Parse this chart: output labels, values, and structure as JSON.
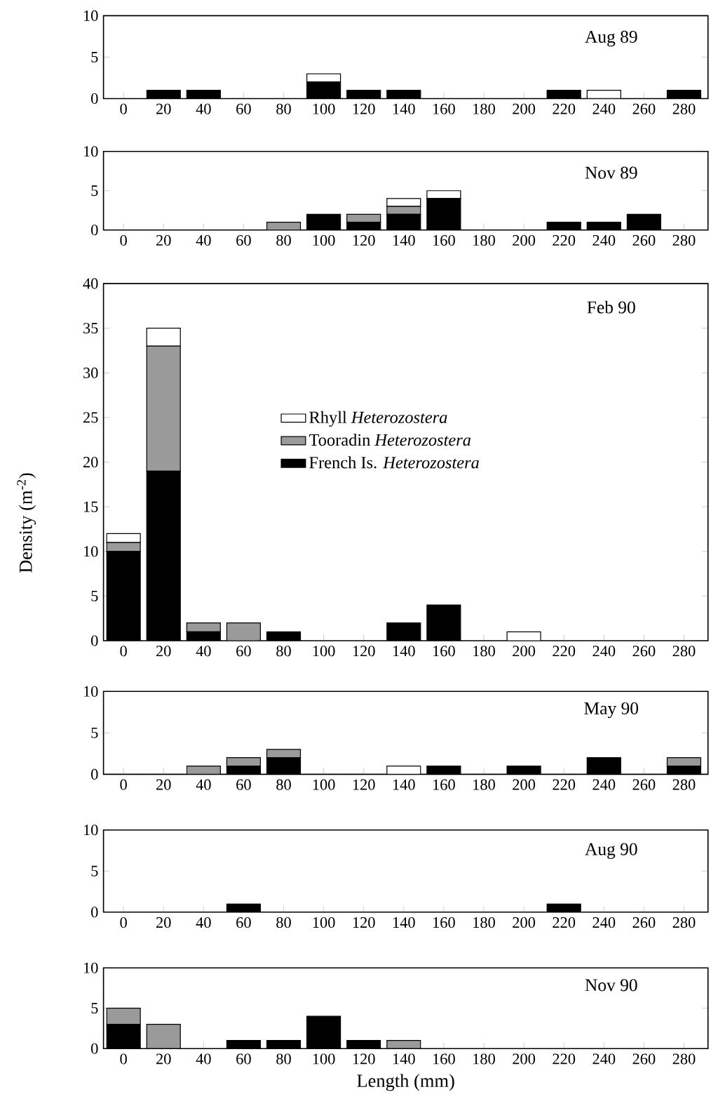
{
  "chart_data": [
    {
      "type": "bar",
      "stacked": true,
      "title": "Aug 89",
      "categories": [
        "0",
        "20",
        "40",
        "60",
        "80",
        "100",
        "120",
        "140",
        "160",
        "180",
        "200",
        "220",
        "240",
        "260",
        "280"
      ],
      "ylim": [
        0,
        10
      ],
      "yticks": [
        0,
        5,
        10
      ],
      "series": [
        {
          "color": "#000000",
          "values": [
            0,
            1,
            1,
            0,
            0,
            2,
            1,
            1,
            0,
            0,
            0,
            1,
            0,
            0,
            1
          ]
        },
        {
          "color": "#9a9a9a",
          "values": [
            0,
            0,
            0,
            0,
            0,
            0,
            0,
            0,
            0,
            0,
            0,
            0,
            0,
            0,
            0
          ]
        },
        {
          "color": "#ffffff",
          "values": [
            0,
            0,
            0,
            0,
            0,
            1,
            0,
            0,
            0,
            0,
            0,
            0,
            1,
            0,
            0
          ]
        }
      ]
    },
    {
      "type": "bar",
      "stacked": true,
      "title": "Nov 89",
      "categories": [
        "0",
        "20",
        "40",
        "60",
        "80",
        "100",
        "120",
        "140",
        "160",
        "180",
        "200",
        "220",
        "240",
        "260",
        "280"
      ],
      "ylim": [
        0,
        10
      ],
      "yticks": [
        0,
        5,
        10
      ],
      "series": [
        {
          "color": "#000000",
          "values": [
            0,
            0,
            0,
            0,
            0,
            2,
            1,
            2,
            4,
            0,
            0,
            1,
            1,
            2,
            0
          ]
        },
        {
          "color": "#9a9a9a",
          "values": [
            0,
            0,
            0,
            0,
            1,
            0,
            1,
            1,
            0,
            0,
            0,
            0,
            0,
            0,
            0
          ]
        },
        {
          "color": "#ffffff",
          "values": [
            0,
            0,
            0,
            0,
            0,
            0,
            0,
            1,
            1,
            0,
            0,
            0,
            0,
            0,
            0
          ]
        }
      ]
    },
    {
      "type": "bar",
      "stacked": true,
      "title": "Feb 90",
      "ylabel": "Density (m$^{-2}$)",
      "legend": "center",
      "categories": [
        "0",
        "20",
        "40",
        "60",
        "80",
        "100",
        "120",
        "140",
        "160",
        "180",
        "200",
        "220",
        "240",
        "260",
        "280"
      ],
      "ylim": [
        0,
        40
      ],
      "yticks": [
        0,
        5,
        10,
        15,
        20,
        25,
        30,
        35,
        40
      ],
      "series": [
        {
          "name": "French Is. *Heterozostera*",
          "color": "#000000",
          "values": [
            10,
            19,
            1,
            0,
            1,
            0,
            0,
            2,
            4,
            0,
            0,
            0,
            0,
            0,
            0
          ]
        },
        {
          "name": "Tooradin *Heterozostera*",
          "color": "#9a9a9a",
          "values": [
            1,
            14,
            1,
            2,
            0,
            0,
            0,
            0,
            0,
            0,
            0,
            0,
            0,
            0,
            0
          ]
        },
        {
          "name": "Rhyll *Heterozostera*",
          "color": "#ffffff",
          "values": [
            1,
            2,
            0,
            0,
            0,
            0,
            0,
            0,
            0,
            0,
            1,
            0,
            0,
            0,
            0
          ]
        }
      ]
    },
    {
      "type": "bar",
      "stacked": true,
      "title": "May 90",
      "categories": [
        "0",
        "20",
        "40",
        "60",
        "80",
        "100",
        "120",
        "140",
        "160",
        "180",
        "200",
        "220",
        "240",
        "260",
        "280"
      ],
      "ylim": [
        0,
        10
      ],
      "yticks": [
        0,
        5,
        10
      ],
      "series": [
        {
          "color": "#000000",
          "values": [
            0,
            0,
            0,
            1,
            2,
            0,
            0,
            0,
            1,
            0,
            1,
            0,
            2,
            0,
            1
          ]
        },
        {
          "color": "#9a9a9a",
          "values": [
            0,
            0,
            1,
            1,
            1,
            0,
            0,
            0,
            0,
            0,
            0,
            0,
            0,
            0,
            1
          ]
        },
        {
          "color": "#ffffff",
          "values": [
            0,
            0,
            0,
            0,
            0,
            0,
            0,
            1,
            0,
            0,
            0,
            0,
            0,
            0,
            0
          ]
        }
      ]
    },
    {
      "type": "bar",
      "stacked": true,
      "title": "Aug 90",
      "categories": [
        "0",
        "20",
        "40",
        "60",
        "80",
        "100",
        "120",
        "140",
        "160",
        "180",
        "200",
        "220",
        "240",
        "260",
        "280"
      ],
      "ylim": [
        0,
        10
      ],
      "yticks": [
        0,
        5,
        10
      ],
      "series": [
        {
          "color": "#000000",
          "values": [
            0,
            0,
            0,
            1,
            0,
            0,
            0,
            0,
            0,
            0,
            0,
            1,
            0,
            0,
            0
          ]
        },
        {
          "color": "#9a9a9a",
          "values": [
            0,
            0,
            0,
            0,
            0,
            0,
            0,
            0,
            0,
            0,
            0,
            0,
            0,
            0,
            0
          ]
        },
        {
          "color": "#ffffff",
          "values": [
            0,
            0,
            0,
            0,
            0,
            0,
            0,
            0,
            0,
            0,
            0,
            0,
            0,
            0,
            0
          ]
        }
      ]
    },
    {
      "type": "bar",
      "stacked": true,
      "title": "Nov 90",
      "xlabel": "Length (mm)",
      "categories": [
        "0",
        "20",
        "40",
        "60",
        "80",
        "100",
        "120",
        "140",
        "160",
        "180",
        "200",
        "220",
        "240",
        "260",
        "280"
      ],
      "ylim": [
        0,
        10
      ],
      "yticks": [
        0,
        5,
        10
      ],
      "series": [
        {
          "color": "#000000",
          "values": [
            3,
            0,
            0,
            1,
            1,
            4,
            1,
            0,
            0,
            0,
            0,
            0,
            0,
            0,
            0
          ]
        },
        {
          "color": "#9a9a9a",
          "values": [
            2,
            3,
            0,
            0,
            0,
            0,
            0,
            1,
            0,
            0,
            0,
            0,
            0,
            0,
            0
          ]
        },
        {
          "color": "#ffffff",
          "values": [
            0,
            0,
            0,
            0,
            0,
            0,
            0,
            0,
            0,
            0,
            0,
            0,
            0,
            0,
            0
          ]
        }
      ]
    }
  ]
}
